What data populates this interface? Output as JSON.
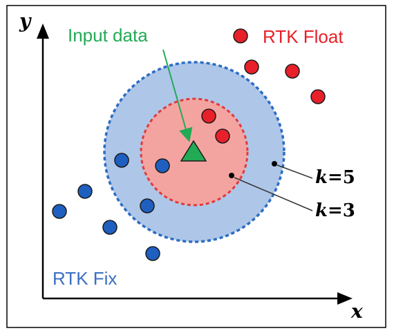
{
  "axes": {
    "x_label": "x",
    "y_label": "y"
  },
  "labels": {
    "input": "Input data",
    "float": "RTK Float",
    "fix": "RTK Fix",
    "k5": {
      "var": "k",
      "eq": "=5"
    },
    "k3": {
      "var": "k",
      "eq": "=3"
    }
  },
  "colors": {
    "float": "#e8202a",
    "fix": "#1f5fbf",
    "input": "#22aa55",
    "outer_circle": "#aec6e8",
    "outer_border": "#2b6cc4",
    "inner_circle": "#f4a4a0",
    "inner_border": "#e03a3a",
    "fix_text": "#3a6fc4",
    "float_text": "#e8202a",
    "input_text": "#22aa55"
  },
  "classes": [
    "RTK Float",
    "RTK Fix",
    "Input data"
  ]
}
